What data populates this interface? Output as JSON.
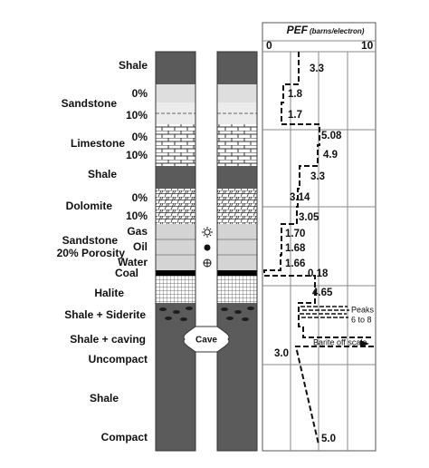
{
  "header": {
    "title": "PEF",
    "unit": "(barns/electron)",
    "scale_min": "0",
    "scale_max": "10"
  },
  "lithology": {
    "shale_1": "Shale",
    "sandstone": "Sandstone",
    "sandstone_0": "0%",
    "sandstone_10": "10%",
    "limestone": "Limestone",
    "limestone_0": "0%",
    "limestone_10": "10%",
    "shale_2": "Shale",
    "dolomite": "Dolomite",
    "dolomite_0": "0%",
    "dolomite_10": "10%",
    "gas": "Gas",
    "sandstone_porous": "Sandstone",
    "porosity": "20% Porosity",
    "oil": "Oil",
    "water": "Water",
    "coal": "Coal",
    "halite": "Halite",
    "siderite": "Shale + Siderite",
    "caving": "Shale + caving",
    "uncompact": "Uncompact",
    "shale_3": "Shale",
    "compact": "Compact",
    "cave": "Cave"
  },
  "pef_labels": [
    "3.3",
    "1.8",
    "1.7",
    "5.08",
    "4.9",
    "3.3",
    "3.14",
    "3.05",
    "1.70",
    "1.68",
    "1.66",
    "0.18",
    "4.65",
    "3.0",
    "5.0"
  ],
  "notes": {
    "peaks": "Peaks",
    "peaks_range": "6 to 8",
    "barite": "Barite off scale"
  }
}
